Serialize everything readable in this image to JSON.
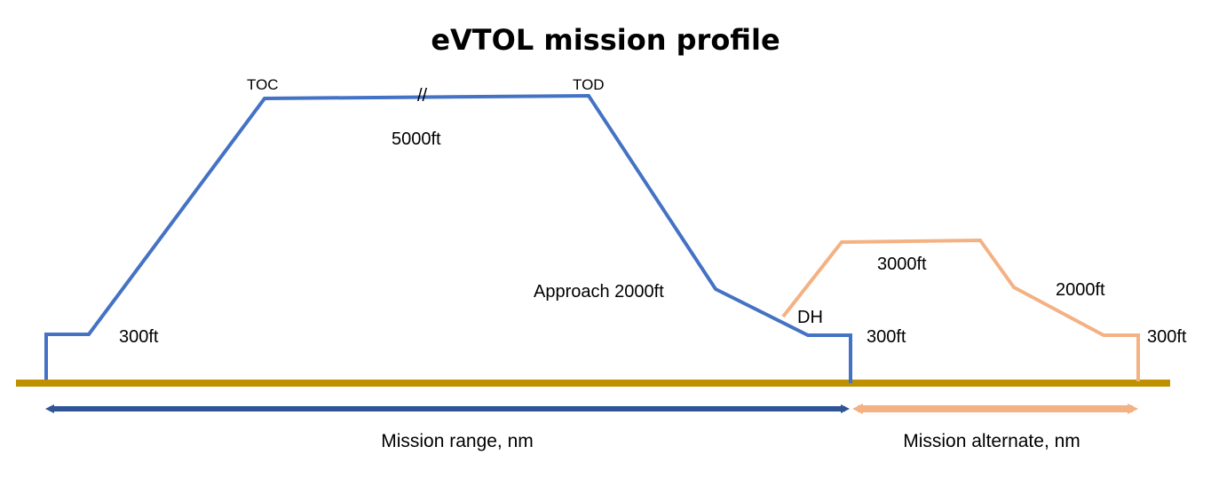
{
  "title": "eVTOL mission profile",
  "colors": {
    "mission": "#4472c4",
    "alternate": "#f4b183",
    "ground": "#bf9000",
    "range_arrow": "#2f5597"
  },
  "labels": {
    "toc": "TOC",
    "tod": "TOD",
    "break_mark": "//",
    "cruise_alt": "5000ft",
    "approach_alt": "Approach 2000ft",
    "dh": "DH",
    "hover_alt_start": "300ft",
    "hover_alt_end": "300ft",
    "alt_cruise_alt": "3000ft",
    "alt_descent_alt": "2000ft",
    "alt_hover_alt": "300ft"
  },
  "ranges": {
    "mission_range": "Mission range, nm",
    "mission_alternate": "Mission alternate, nm"
  }
}
